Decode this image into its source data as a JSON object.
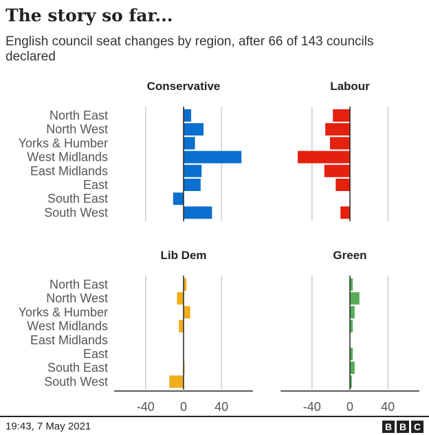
{
  "title": "The story so far...",
  "subtitle": "English council seat changes by region, after 66 of 143 councils declared",
  "footer": {
    "timestamp": "19:43,  7 May 2021",
    "logo_letters": [
      "B",
      "B",
      "C"
    ]
  },
  "colors": {
    "Conservative": "#0a6fce",
    "Labour": "#e4200f",
    "Lib Dem": "#f0ad1c",
    "Green": "#5aac5a",
    "grid": "#cccccc",
    "zero": "#222222"
  },
  "chart_data": {
    "type": "bar",
    "orientation": "horizontal",
    "categories": [
      "North East",
      "North West",
      "Yorks & Humber",
      "West Midlands",
      "East Midlands",
      "East",
      "South East",
      "South West"
    ],
    "xlim": [
      -70,
      70
    ],
    "xticks": [
      -40,
      0,
      40
    ],
    "grid": true,
    "panels": [
      {
        "name": "Conservative",
        "values": [
          8,
          21,
          12,
          61,
          19,
          18,
          -11,
          30
        ]
      },
      {
        "name": "Labour",
        "values": [
          -18,
          -26,
          -21,
          -55,
          -27,
          -15,
          0,
          -10
        ]
      },
      {
        "name": "Lib Dem",
        "values": [
          3,
          -7,
          7,
          -5,
          0,
          0,
          1,
          -15
        ]
      },
      {
        "name": "Green",
        "values": [
          3,
          10,
          5,
          3,
          0,
          3,
          5,
          2
        ]
      }
    ]
  }
}
